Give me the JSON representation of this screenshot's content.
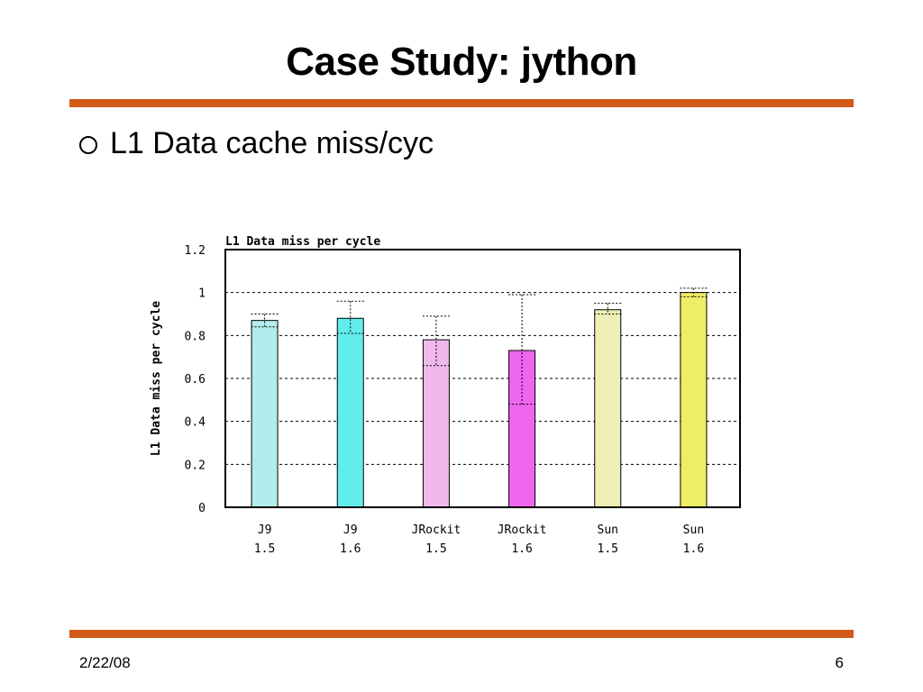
{
  "slide": {
    "title": "Case Study: jython",
    "bullet": "L1 Data cache miss/cyc",
    "footer_date": "2/22/08",
    "page_number": "6",
    "accent_color": "#d15a17"
  },
  "chart_data": {
    "type": "bar",
    "title": "L1 Data miss per cycle",
    "xlabel": "",
    "ylabel": "L1 Data miss per cycle",
    "ylim": [
      0,
      1.2
    ],
    "yticks": [
      0,
      0.2,
      0.4,
      0.6,
      0.8,
      1,
      1.2
    ],
    "ytick_labels": [
      "0",
      "0.2",
      "0.4",
      "0.6",
      "0.8",
      "1",
      "1.2"
    ],
    "grid": true,
    "categories": [
      {
        "line1": "J9",
        "line2": "1.5"
      },
      {
        "line1": "J9",
        "line2": "1.6"
      },
      {
        "line1": "JRockit",
        "line2": "1.5"
      },
      {
        "line1": "JRockit",
        "line2": "1.6"
      },
      {
        "line1": "Sun",
        "line2": "1.5"
      },
      {
        "line1": "Sun",
        "line2": "1.6"
      }
    ],
    "values": [
      0.87,
      0.88,
      0.78,
      0.73,
      0.92,
      1.0
    ],
    "error_bars": [
      {
        "low": 0.84,
        "high": 0.9
      },
      {
        "low": 0.81,
        "high": 0.96
      },
      {
        "low": 0.66,
        "high": 0.89
      },
      {
        "low": 0.48,
        "high": 0.99
      },
      {
        "low": 0.9,
        "high": 0.95
      },
      {
        "low": 0.98,
        "high": 1.02
      }
    ],
    "colors": [
      "#b3ecec",
      "#62eded",
      "#efb9ec",
      "#ee66ee",
      "#eeeeb6",
      "#eeee66"
    ]
  }
}
